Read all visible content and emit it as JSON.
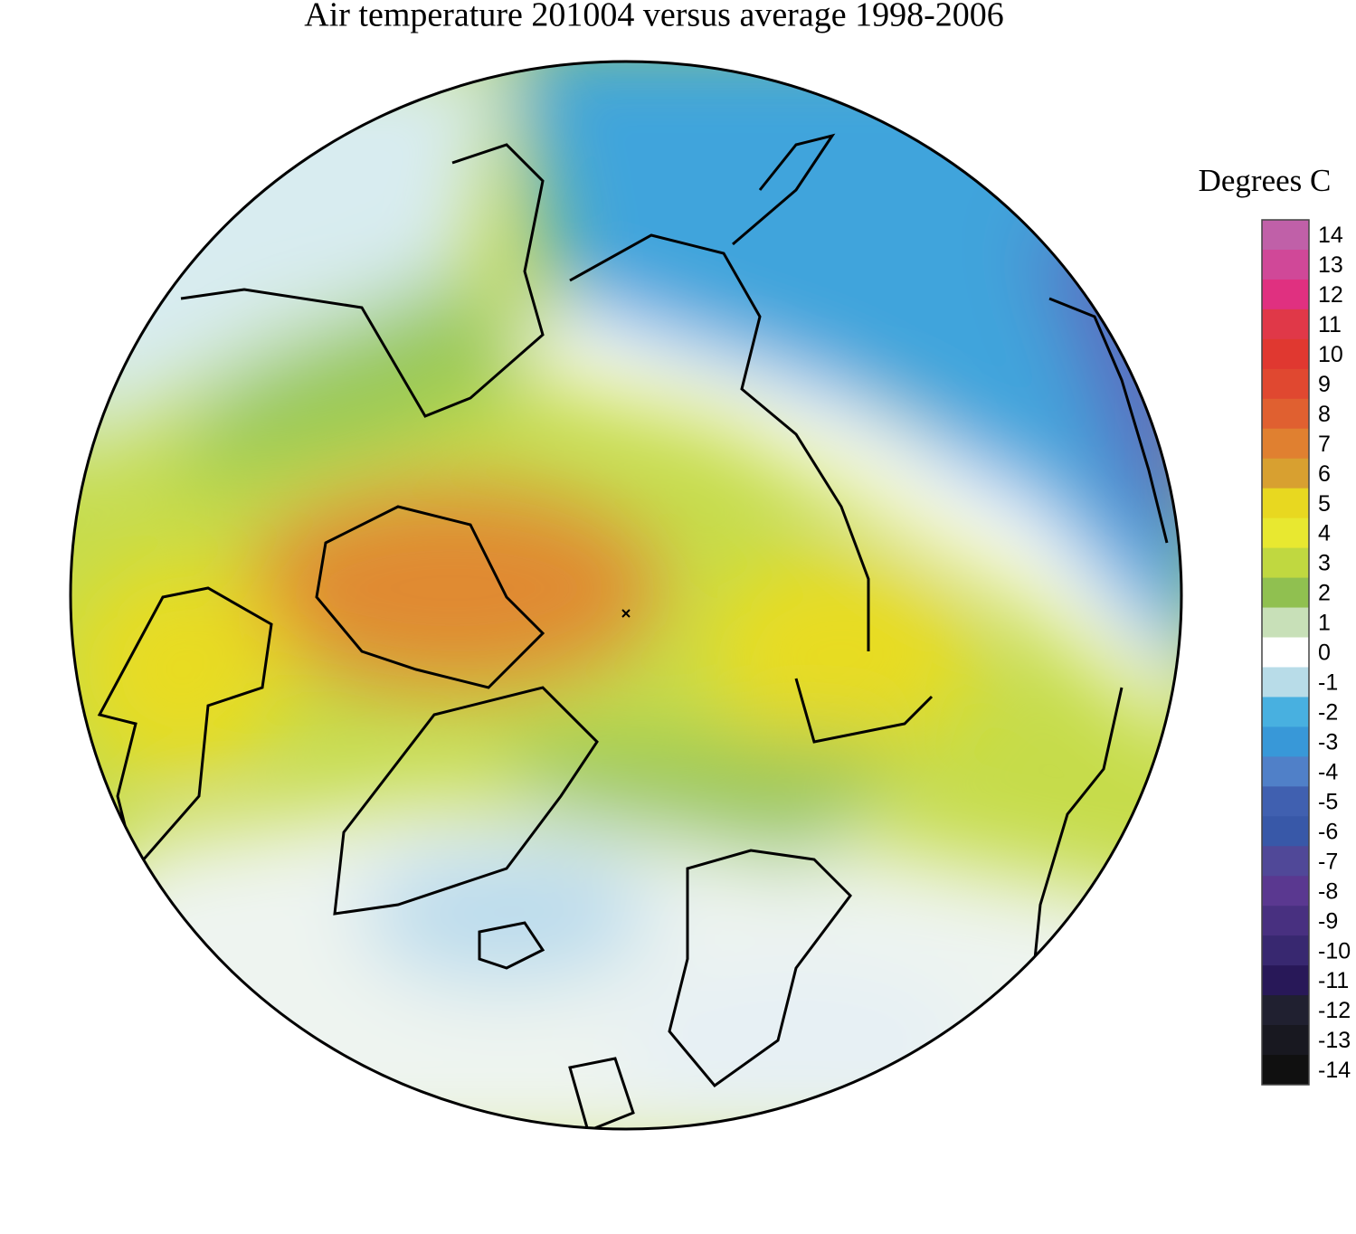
{
  "title": "Air temperature 201004 versus average 1998-2006",
  "colorbar": {
    "label": "Degrees C",
    "ticks": [
      14,
      13,
      12,
      11,
      10,
      9,
      8,
      7,
      6,
      5,
      4,
      3,
      2,
      1,
      0,
      -1,
      -2,
      -3,
      -4,
      -5,
      -6,
      -7,
      -8,
      -9,
      -10,
      -11,
      -12,
      -13,
      -14
    ],
    "colors": [
      "#c060a8",
      "#d04898",
      "#e03080",
      "#e03848",
      "#e03830",
      "#e04830",
      "#e06030",
      "#e08030",
      "#d8a030",
      "#e8d820",
      "#e8e830",
      "#c0d840",
      "#90c050",
      "#c8e0b8",
      "#ffffff",
      "#b8dce8",
      "#48b0e0",
      "#3898d8",
      "#5080c8",
      "#4060b0",
      "#3858a8",
      "#504898",
      "#5a3890",
      "#483080",
      "#382870",
      "#281858",
      "#202030",
      "#181820",
      "#101010"
    ]
  }
}
